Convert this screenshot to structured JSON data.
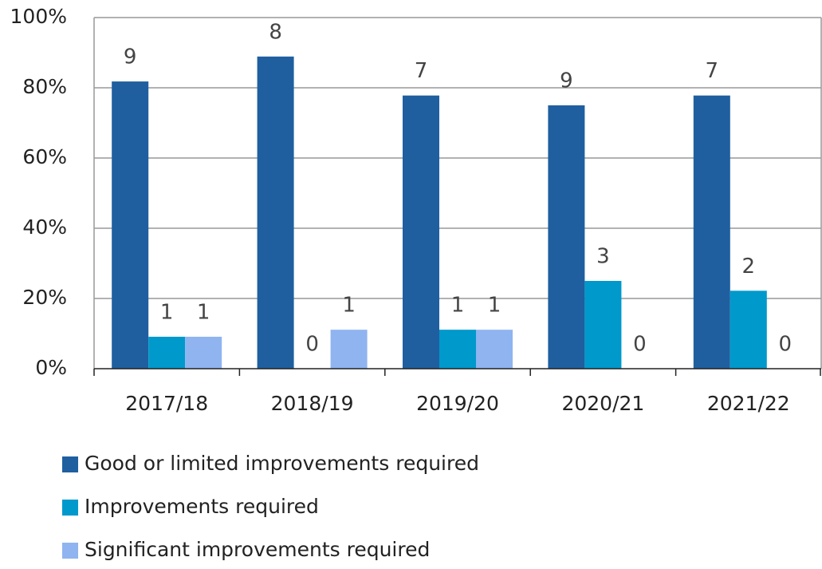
{
  "chart_data": {
    "type": "bar",
    "categories": [
      "2017/18",
      "2018/19",
      "2019/20",
      "2020/21",
      "2021/22"
    ],
    "series": [
      {
        "name": "Good or limited improvements required",
        "color": "#1f5fa0",
        "values": [
          81.8,
          88.9,
          77.8,
          75,
          77.8
        ],
        "counts": [
          9,
          8,
          7,
          9,
          7
        ]
      },
      {
        "name": "Improvements required",
        "color": "#0099cc",
        "values": [
          9.1,
          0,
          11.1,
          25,
          22.2
        ],
        "counts": [
          1,
          0,
          1,
          3,
          2
        ]
      },
      {
        "name": "Significant improvements required",
        "color": "#8fb4f0",
        "values": [
          9.1,
          11.1,
          11.1,
          0,
          0
        ],
        "counts": [
          1,
          1,
          1,
          0,
          0
        ]
      }
    ],
    "ylim": [
      0,
      100
    ],
    "yticks": [
      {
        "value": 0,
        "label": "0%"
      },
      {
        "value": 20,
        "label": "20%"
      },
      {
        "value": 40,
        "label": "40%"
      },
      {
        "value": 60,
        "label": "60%"
      },
      {
        "value": 80,
        "label": "80%"
      },
      {
        "value": 100,
        "label": "100%"
      }
    ],
    "grid": true
  }
}
